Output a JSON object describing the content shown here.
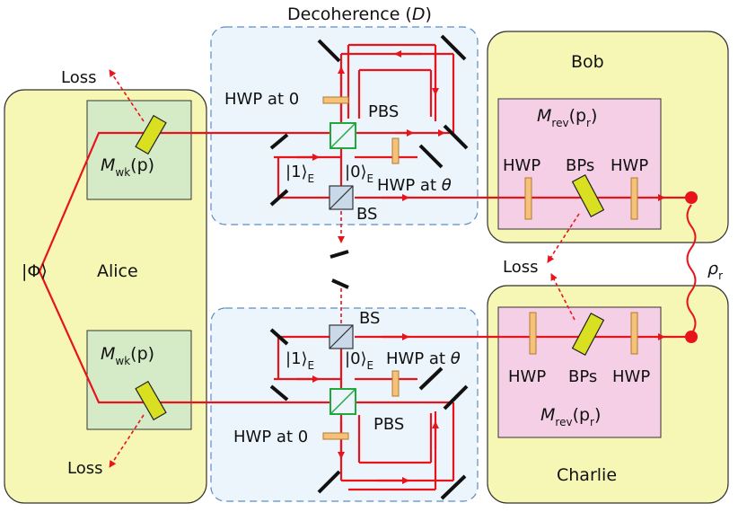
{
  "labels": {
    "decoherence_title": "Decoherence (",
    "decoherence_sym": "D",
    "decoherence_close": ")",
    "bob": "Bob",
    "charlie": "Charlie",
    "alice": "Alice",
    "phi_state": "|Φ⟩",
    "loss": "Loss",
    "hwp": "HWP",
    "bps": "BPs",
    "pbs": "PBS",
    "bs": "BS",
    "hwp_at_0": "HWP at 0",
    "hwp_at_theta_prefix": "HWP at ",
    "theta": "θ",
    "ket1": "|1⟩",
    "ket0": "|0⟩",
    "sub_E": "E",
    "M": "M",
    "sub_wk": "wk",
    "sub_rev": "rev",
    "arg_p": "(p)",
    "arg_pr_open": "(p",
    "sub_r": "r",
    "arg_close": ")",
    "rho": "ρ"
  },
  "colors": {
    "beam": "#e8141b",
    "panel_yellow": "#f7f7b5",
    "panel_green": "#d5ebc8",
    "panel_pink": "#f4cfe6",
    "panel_blue": "#ecf5fb",
    "box_dash": "#5b8ec4",
    "pbs_green": "#20a83c",
    "hwp_orange": "#f6c27a",
    "bp_yellow": "#d9e021"
  }
}
